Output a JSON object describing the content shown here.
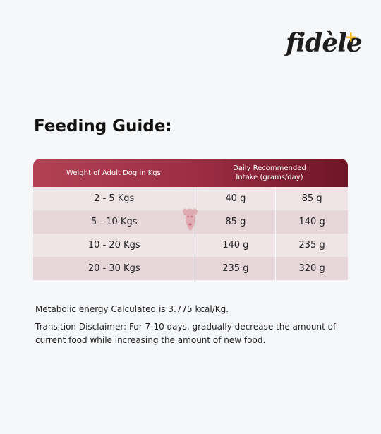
{
  "brand": {
    "name": "fidèle",
    "plus": "+"
  },
  "title": "Feeding Guide:",
  "table": {
    "header": {
      "weight": "Weight of Adult Dog in Kgs",
      "intake_line1": "Daily Recommended",
      "intake_line2": "Intake (grams/day)"
    },
    "rows": [
      {
        "weight": "2 - 5 Kgs",
        "min": "40 g",
        "max": "85 g"
      },
      {
        "weight": "5 - 10 Kgs",
        "min": "85 g",
        "max": "140 g"
      },
      {
        "weight": "10 - 20 Kgs",
        "min": "140 g",
        "max": "235 g"
      },
      {
        "weight": "20 - 30 Kgs",
        "min": "235 g",
        "max": "320 g"
      }
    ]
  },
  "notes": {
    "metabolic": "Metabolic energy Calculated is 3.775 kcal/Kg.",
    "transition": "Transition Disclaimer: For 7-10 days, gradually decrease the amount of current food while increasing the amount of new food."
  },
  "colors": {
    "header_start": "#b24155",
    "header_end": "#6e1525",
    "accent_plus": "#f5b400"
  }
}
